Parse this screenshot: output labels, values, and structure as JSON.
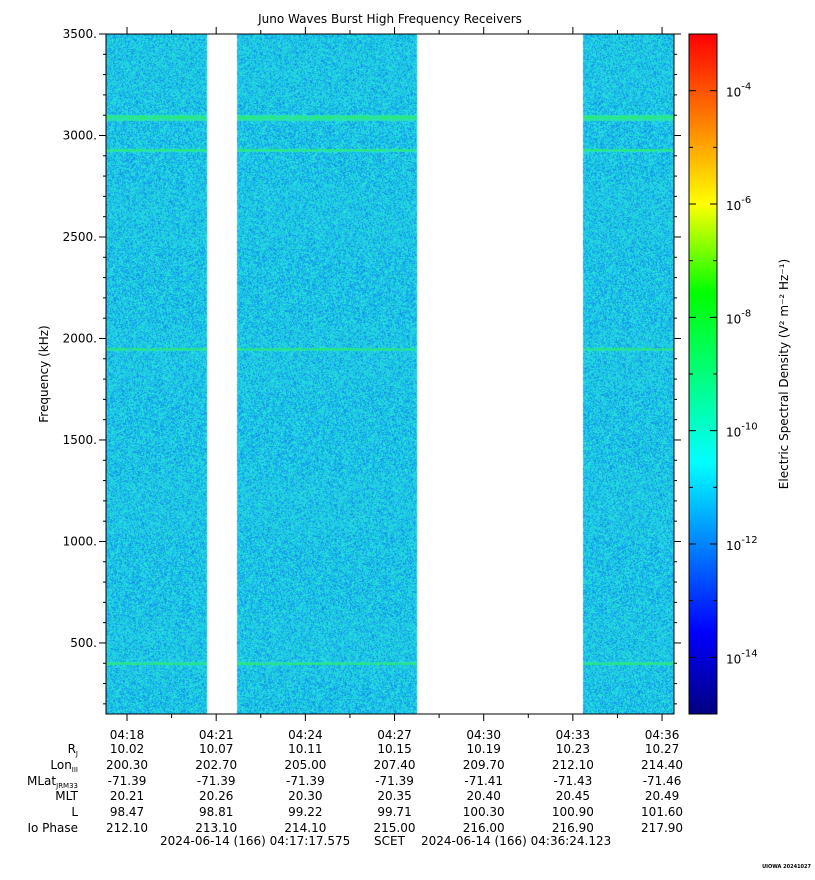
{
  "chart_data": {
    "type": "heatmap",
    "title": "Juno Waves Burst High Frequency Receivers",
    "ylabel": "Frequency (kHz)",
    "ylim": [
      150,
      3500
    ],
    "yticks": [
      "500.",
      "1000.",
      "1500.",
      "2000.",
      "2500.",
      "3000.",
      "3500."
    ],
    "ytick_values": [
      500,
      1000,
      1500,
      2000,
      2500,
      3000,
      3500
    ],
    "x_start": "04:17:17.575",
    "x_end": "04:36:24.123",
    "xticks": [
      "04:18",
      "04:21",
      "04:24",
      "04:27",
      "04:30",
      "04:33",
      "04:36"
    ],
    "data_intervals": [
      [
        "04:17:17",
        "04:20:40"
      ],
      [
        "04:21:42",
        "04:27:45"
      ],
      [
        "04:33:19",
        "04:36:24"
      ]
    ],
    "emission_lines_khz": [
      400,
      1950,
      2930,
      3090
    ],
    "background_level": "1e-12",
    "colorbar": {
      "label": "Electric Spectral Density (V² m⁻² Hz⁻¹)",
      "scale": "log",
      "range": [
        1e-15,
        0.001
      ],
      "tick_labels": [
        "10-4",
        "10-6",
        "10-8",
        "10-10",
        "10-12",
        "10-14"
      ],
      "tick_values": [
        -4,
        -6,
        -8,
        -10,
        -12,
        -14
      ]
    },
    "colors": {
      "background_cyan": "#22d6e6",
      "line_green": "#2ae0a0",
      "gap": "#ffffff"
    }
  },
  "ephemeris": {
    "labels": [
      "R",
      "Lon",
      "MLat",
      "MLT",
      "L",
      "Io Phase"
    ],
    "label_subs": [
      "J",
      "III",
      "JRM33",
      "",
      "",
      ""
    ],
    "columns": [
      {
        "time": "04:18",
        "values": [
          "10.02",
          "200.30",
          "-71.39",
          "20.21",
          "98.47",
          "212.10"
        ]
      },
      {
        "time": "04:21",
        "values": [
          "10.07",
          "202.70",
          "-71.39",
          "20.26",
          "98.81",
          "213.10"
        ]
      },
      {
        "time": "04:24",
        "values": [
          "10.11",
          "205.00",
          "-71.39",
          "20.30",
          "99.22",
          "214.10"
        ]
      },
      {
        "time": "04:27",
        "values": [
          "10.15",
          "207.40",
          "-71.39",
          "20.35",
          "99.71",
          "215.00"
        ]
      },
      {
        "time": "04:30",
        "values": [
          "10.19",
          "209.70",
          "-71.41",
          "20.40",
          "100.30",
          "216.00"
        ]
      },
      {
        "time": "04:33",
        "values": [
          "10.23",
          "212.10",
          "-71.43",
          "20.45",
          "100.90",
          "216.90"
        ]
      },
      {
        "time": "04:36",
        "values": [
          "10.27",
          "214.40",
          "-71.46",
          "20.49",
          "101.60",
          "217.90"
        ]
      }
    ]
  },
  "scet": {
    "start": "2024-06-14 (166) 04:17:17.575",
    "label": "SCET",
    "end": "2024-06-14 (166) 04:36:24.123"
  },
  "stamp": "UIOWA 20241027"
}
